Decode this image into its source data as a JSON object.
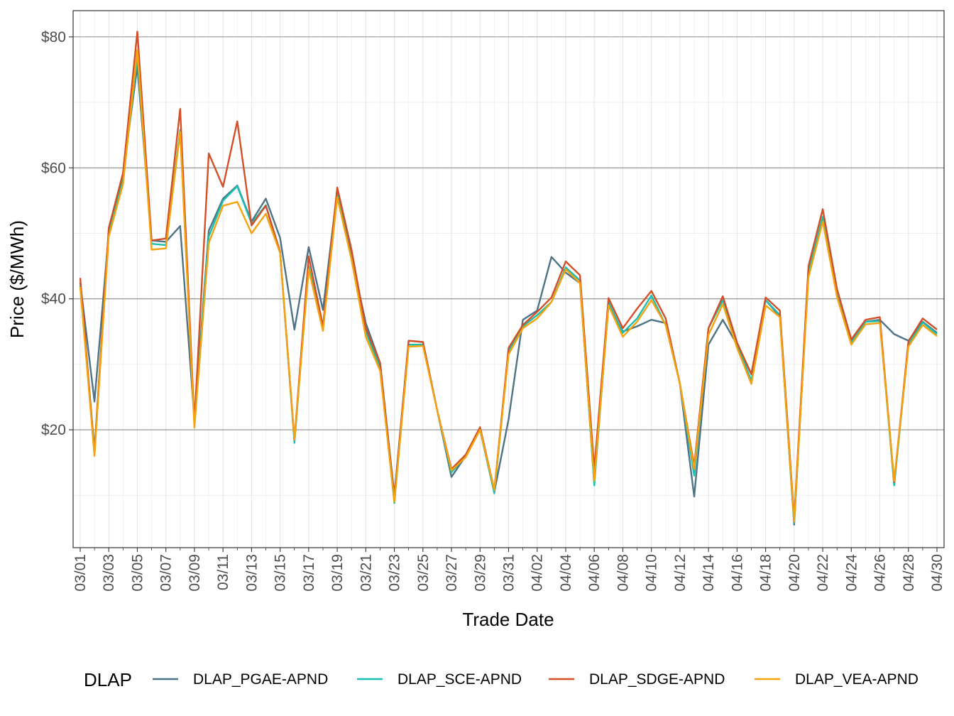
{
  "chart_data": {
    "type": "line",
    "xlabel": "Trade Date",
    "ylabel": "Price ($/MWh)",
    "ylim": [
      2,
      84
    ],
    "yticks": [
      20,
      40,
      60,
      80
    ],
    "ytick_labels": [
      "$20",
      "$40",
      "$60",
      "$80"
    ],
    "xtick_labels": [
      "03/01",
      "03/03",
      "03/05",
      "03/07",
      "03/09",
      "03/11",
      "03/13",
      "03/15",
      "03/17",
      "03/19",
      "03/21",
      "03/23",
      "03/25",
      "03/27",
      "03/29",
      "03/31",
      "04/02",
      "04/04",
      "04/06",
      "04/08",
      "04/10",
      "04/12",
      "04/14",
      "04/16",
      "04/18",
      "04/20",
      "04/22",
      "04/24",
      "04/26",
      "04/28",
      "04/30"
    ],
    "grid": true,
    "legend": {
      "title": "DLAP",
      "position": "bottom"
    },
    "x": [
      "03/01",
      "03/02",
      "03/03",
      "03/04",
      "03/05",
      "03/06",
      "03/07",
      "03/08",
      "03/09",
      "03/10",
      "03/11",
      "03/12",
      "03/13",
      "03/14",
      "03/15",
      "03/16",
      "03/17",
      "03/18",
      "03/19",
      "03/20",
      "03/21",
      "03/22",
      "03/23",
      "03/24",
      "03/25",
      "03/26",
      "03/27",
      "03/28",
      "03/29",
      "03/30",
      "03/31",
      "04/01",
      "04/02",
      "04/03",
      "04/04",
      "04/05",
      "04/06",
      "04/07",
      "04/08",
      "04/09",
      "04/10",
      "04/11",
      "04/12",
      "04/13",
      "04/14",
      "04/15",
      "04/16",
      "04/17",
      "04/18",
      "04/19",
      "04/20",
      "04/21",
      "04/22",
      "04/23",
      "04/24",
      "04/25",
      "04/26",
      "04/27",
      "04/28",
      "04/29",
      "04/30"
    ],
    "series": [
      {
        "name": "DLAP_PGAE-APND",
        "color": "#4e7384",
        "values": [
          42.5,
          24.3,
          50.0,
          59.0,
          75.5,
          48.9,
          48.7,
          51.1,
          21.5,
          50.4,
          55.3,
          57.3,
          51.8,
          55.3,
          49.3,
          35.3,
          47.9,
          38.3,
          56.5,
          46.5,
          36.3,
          30.2,
          10.0,
          33.6,
          33.4,
          23.0,
          12.8,
          16.0,
          20.0,
          10.5,
          21.6,
          36.8,
          38.2,
          46.4,
          44.0,
          42.4,
          12.0,
          39.0,
          35.0,
          35.8,
          36.8,
          36.3,
          27.0,
          9.8,
          33.0,
          36.8,
          33.0,
          28.5,
          39.8,
          37.3,
          5.5,
          44.0,
          52.5,
          40.5,
          33.5,
          36.5,
          36.8,
          34.6,
          33.6,
          36.5,
          34.8
        ]
      },
      {
        "name": "DLAP_SCE-APND",
        "color": "#19bfb0",
        "values": [
          42.0,
          17.0,
          50.0,
          58.0,
          77.0,
          48.4,
          48.2,
          65.8,
          21.0,
          49.5,
          55.0,
          57.2,
          51.5,
          54.3,
          47.0,
          18.0,
          45.0,
          35.5,
          55.9,
          46.0,
          35.0,
          29.5,
          8.8,
          33.0,
          33.0,
          23.0,
          13.5,
          16.0,
          20.0,
          10.3,
          32.0,
          35.8,
          37.5,
          39.5,
          44.8,
          42.8,
          11.5,
          39.5,
          34.8,
          37.0,
          40.5,
          36.0,
          27.0,
          13.0,
          35.5,
          39.8,
          33.0,
          27.5,
          39.8,
          37.5,
          5.8,
          44.0,
          52.5,
          40.5,
          33.3,
          36.5,
          36.6,
          11.5,
          33.0,
          36.4,
          34.6
        ]
      },
      {
        "name": "DLAP_SDGE-APND",
        "color": "#d24f27",
        "values": [
          43.2,
          16.5,
          50.8,
          59.2,
          80.8,
          48.9,
          49.2,
          69.0,
          21.0,
          62.2,
          57.1,
          67.1,
          51.2,
          54.2,
          47.2,
          18.5,
          46.5,
          35.8,
          57.0,
          47.5,
          35.5,
          30.2,
          9.5,
          33.6,
          33.4,
          23.0,
          14.0,
          16.2,
          20.4,
          10.8,
          32.5,
          36.0,
          38.0,
          40.2,
          45.7,
          43.6,
          14.0,
          40.1,
          35.5,
          38.5,
          41.2,
          37.0,
          27.0,
          14.5,
          35.5,
          40.4,
          33.3,
          28.5,
          40.2,
          38.2,
          6.5,
          45.0,
          53.7,
          41.5,
          33.8,
          36.8,
          37.2,
          12.0,
          33.5,
          37.0,
          35.3
        ]
      },
      {
        "name": "DLAP_VEA-APND",
        "color": "#f4a30f",
        "values": [
          41.8,
          16.0,
          49.5,
          57.5,
          78.0,
          47.5,
          47.7,
          65.5,
          20.3,
          48.5,
          54.2,
          54.8,
          50.0,
          53.0,
          47.0,
          18.5,
          44.5,
          35.1,
          55.5,
          46.0,
          34.2,
          29.0,
          9.0,
          32.7,
          32.8,
          23.0,
          13.8,
          15.8,
          20.0,
          10.8,
          31.5,
          35.5,
          37.0,
          39.5,
          44.5,
          42.4,
          12.2,
          39.0,
          34.2,
          36.5,
          39.8,
          36.0,
          27.0,
          14.0,
          34.5,
          39.2,
          32.5,
          27.0,
          39.0,
          37.2,
          6.0,
          43.3,
          51.8,
          40.3,
          33.0,
          36.1,
          36.3,
          12.2,
          32.7,
          36.0,
          34.3
        ]
      }
    ]
  }
}
